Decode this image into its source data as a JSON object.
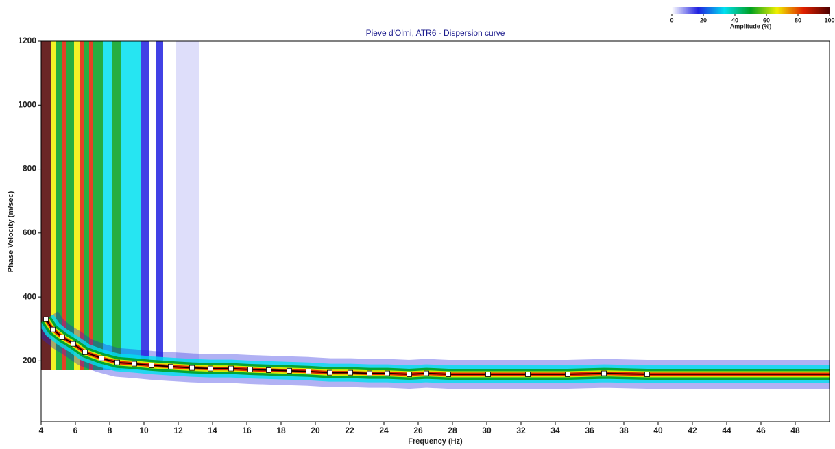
{
  "chart_data": {
    "type": "scatter",
    "title": "Pieve d'Olmi, ATR6 - Dispersion curve",
    "x_label": "Frequency (Hz)",
    "y_label": "Phase Velocity (m/sec)",
    "xlim": [
      4,
      50
    ],
    "ylim": [
      10,
      1200
    ],
    "xticks": [
      4,
      6,
      8,
      10,
      12,
      14,
      16,
      18,
      20,
      22,
      24,
      26,
      28,
      30,
      32,
      34,
      36,
      38,
      40,
      42,
      44,
      46,
      48
    ],
    "yticks": [
      200,
      400,
      600,
      800,
      1000,
      1200
    ],
    "colorbar": {
      "label": "Amplitude (%)",
      "ticks": [
        0,
        20,
        40,
        60,
        80,
        100
      ],
      "colors": [
        "#ffffff",
        "#2020e0",
        "#00e0f0",
        "#00a020",
        "#f0f000",
        "#e02000",
        "#500000"
      ]
    },
    "series": [
      {
        "color": "#000000",
        "x": [
          4.28,
          4.68,
          5.24,
          5.88,
          6.56,
          7.52,
          8.44,
          9.44,
          10.44,
          11.56,
          12.8,
          13.88,
          15.08,
          16.2,
          17.28,
          18.48,
          19.6,
          20.84,
          22.04,
          23.16,
          24.2,
          25.48,
          26.48,
          27.76,
          30.08,
          32.4,
          34.72,
          36.84,
          39.36
        ],
        "values": [
          330,
          298,
          274,
          253,
          227,
          208,
          195,
          191,
          186,
          182,
          178,
          176,
          176,
          173,
          171,
          169,
          167,
          163,
          163,
          161,
          161,
          158,
          161,
          158,
          158,
          158,
          158,
          161,
          158
        ]
      }
    ]
  }
}
